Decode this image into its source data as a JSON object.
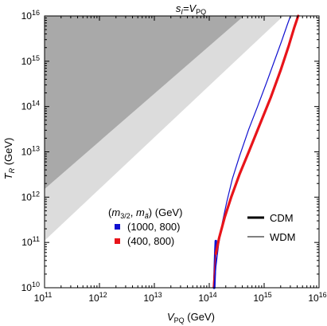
{
  "chart_data": {
    "type": "line",
    "title": {
      "main": "s",
      "sub": "I",
      "rest": "=V",
      "rest_sub": "PQ"
    },
    "xlabel": {
      "main": "V",
      "sub": "PQ",
      "unit": " (GeV)"
    },
    "ylabel": {
      "main": "T",
      "sub": "R",
      "unit": " (GeV)"
    },
    "x_scale": "log",
    "y_scale": "log",
    "xlim_log10": [
      11,
      16
    ],
    "ylim_log10": [
      10,
      16
    ],
    "xticks": [
      {
        "base": "10",
        "exp": "11"
      },
      {
        "base": "10",
        "exp": "12"
      },
      {
        "base": "10",
        "exp": "13"
      },
      {
        "base": "10",
        "exp": "14"
      },
      {
        "base": "10",
        "exp": "15"
      },
      {
        "base": "10",
        "exp": "16"
      }
    ],
    "yticks": [
      {
        "base": "10",
        "exp": "10"
      },
      {
        "base": "10",
        "exp": "11"
      },
      {
        "base": "10",
        "exp": "12"
      },
      {
        "base": "10",
        "exp": "13"
      },
      {
        "base": "10",
        "exp": "14"
      },
      {
        "base": "10",
        "exp": "15"
      },
      {
        "base": "10",
        "exp": "16"
      }
    ],
    "regions": [
      {
        "fill": "#dcdcdc",
        "points_log10": [
          [
            11,
            16
          ],
          [
            15.35,
            16
          ],
          [
            11,
            11.04
          ]
        ]
      },
      {
        "fill": "#a9a9a9",
        "points_log10": [
          [
            11,
            16
          ],
          [
            14.63,
            16
          ],
          [
            11,
            12.18
          ]
        ]
      }
    ],
    "series": [
      {
        "color": "#1010d0",
        "line": "thin",
        "points_log10": [
          [
            14.09,
            10.0
          ],
          [
            14.12,
            10.45
          ],
          [
            14.17,
            10.95
          ],
          [
            14.24,
            11.45
          ],
          [
            14.32,
            11.9
          ],
          [
            14.42,
            12.4
          ],
          [
            14.55,
            12.9
          ],
          [
            14.72,
            13.5
          ],
          [
            14.88,
            14.0
          ],
          [
            15.05,
            14.55
          ],
          [
            15.2,
            15.05
          ],
          [
            15.32,
            15.45
          ],
          [
            15.42,
            15.8
          ],
          [
            15.48,
            16.0
          ]
        ]
      },
      {
        "color": "#1010d0",
        "line": "thick",
        "points_log10": [
          [
            14.09,
            10.0
          ],
          [
            14.1,
            10.35
          ],
          [
            14.11,
            10.75
          ],
          [
            14.12,
            11.03
          ]
        ]
      },
      {
        "color": "#e8141a",
        "line": "thin",
        "points_log10": [
          [
            14.07,
            10.0
          ],
          [
            14.1,
            10.5
          ],
          [
            14.12,
            10.75
          ]
        ]
      },
      {
        "color": "#e8141a",
        "line": "thick",
        "points_log10": [
          [
            14.12,
            10.75
          ],
          [
            14.18,
            11.1
          ],
          [
            14.28,
            11.55
          ],
          [
            14.4,
            12.0
          ],
          [
            14.55,
            12.5
          ],
          [
            14.72,
            13.0
          ],
          [
            14.92,
            13.6
          ],
          [
            15.12,
            14.2
          ],
          [
            15.3,
            14.8
          ],
          [
            15.45,
            15.35
          ],
          [
            15.55,
            15.75
          ],
          [
            15.62,
            16.0
          ]
        ]
      }
    ],
    "legend_params": {
      "title": {
        "open": "(",
        "m1": "m",
        "m1_sub": "3/2",
        "sep": ", ",
        "m2": "m",
        "m2_sub": "ã",
        "close": ")",
        "unit": " (GeV)"
      },
      "entries": [
        {
          "label": "(1000, 800)",
          "color": "#1010d0"
        },
        {
          "label": "(400, 800)",
          "color": "#e8141a"
        }
      ]
    },
    "legend_types": [
      {
        "label": "CDM",
        "line": "thick"
      },
      {
        "label": "WDM",
        "line": "thin"
      }
    ]
  }
}
